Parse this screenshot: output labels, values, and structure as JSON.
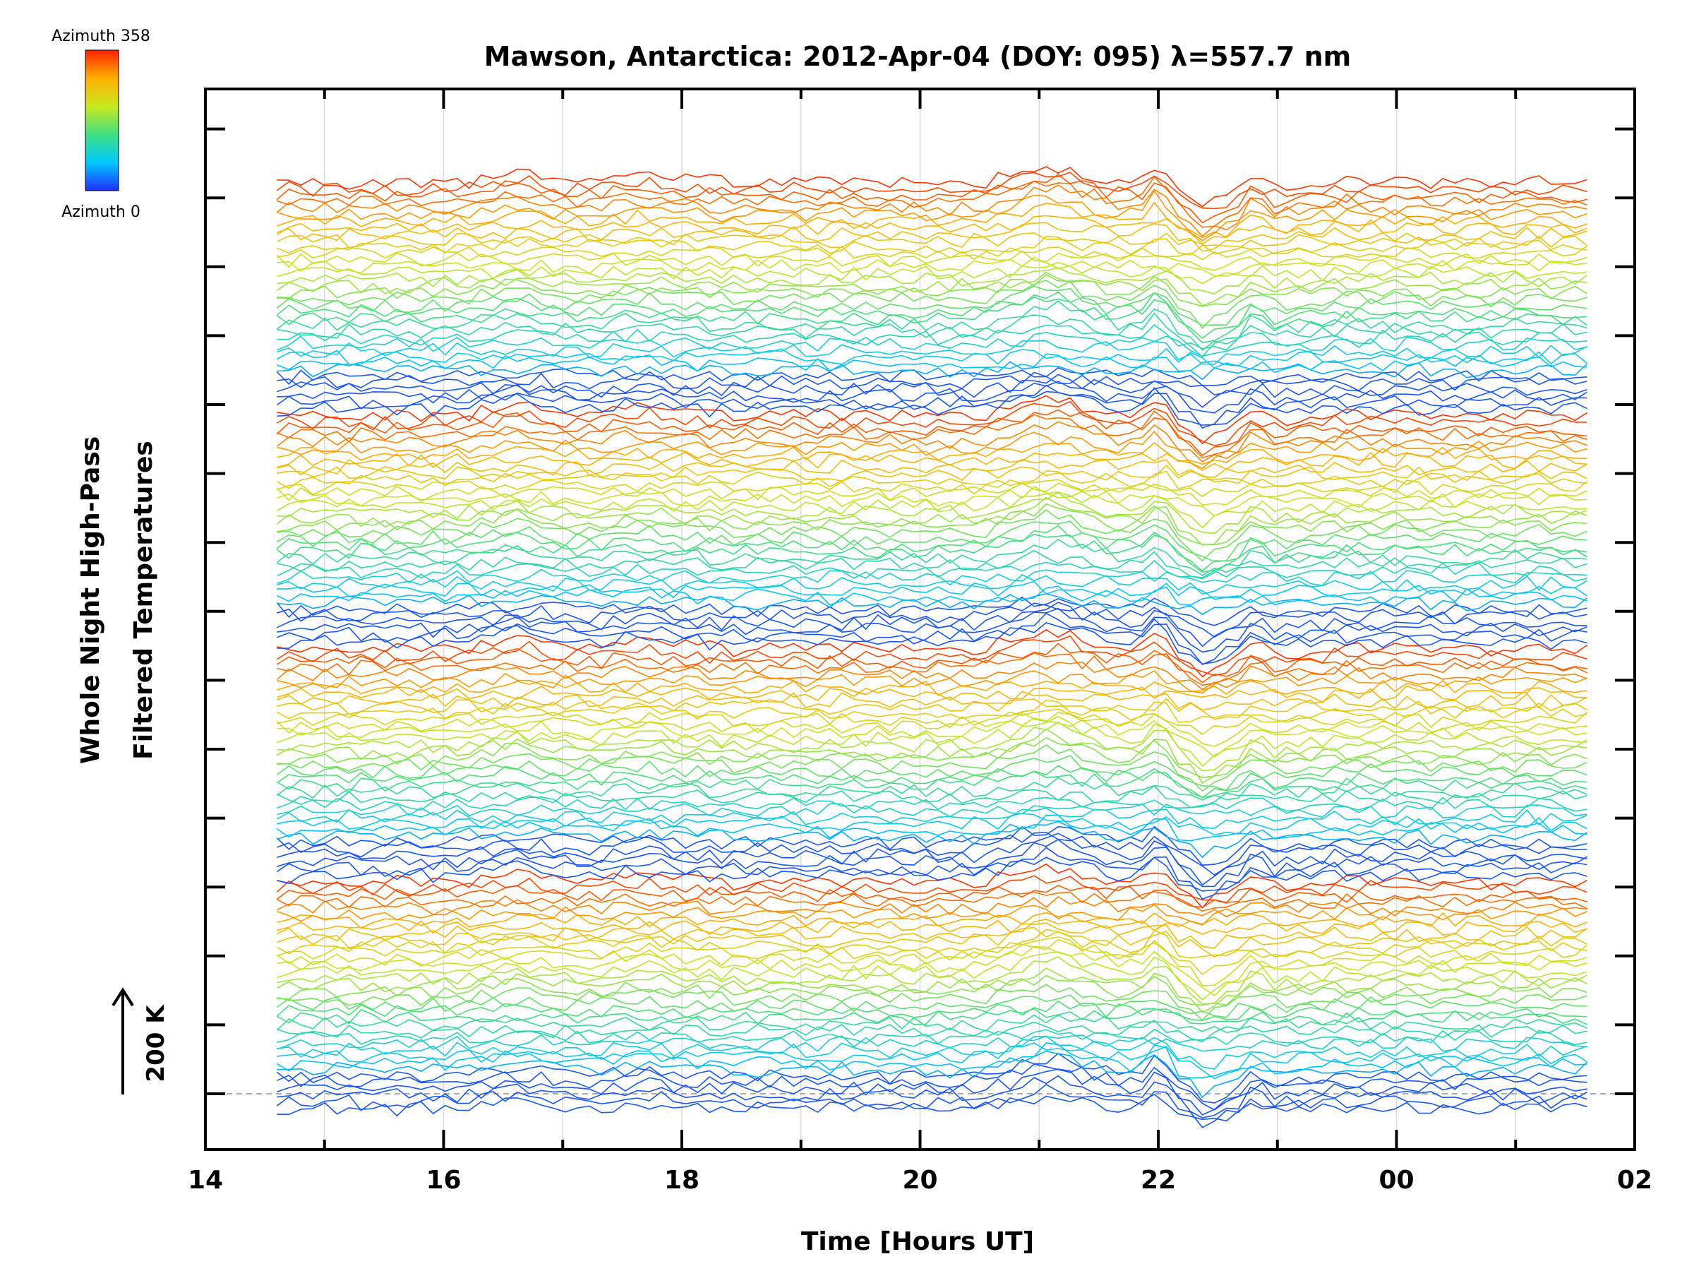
{
  "chart_data": {
    "type": "line",
    "title": "Mawson, Antarctica: 2012-Apr-04 (DOY: 095) λ=557.7 nm",
    "xlabel": "Time [Hours UT]",
    "ylabel_line1": "Whole Night High-Pass",
    "ylabel_line2": "Filtered Temperatures",
    "x_ticks": [
      "14",
      "16",
      "18",
      "20",
      "22",
      "00",
      "02"
    ],
    "x_range_hours_ut": [
      14,
      26
    ],
    "data_range_hours_ut": [
      14.6,
      25.6
    ],
    "scale_bar_label": "200 K",
    "legend": {
      "top_label": "Azimuth 358",
      "bottom_label": "Azimuth 0",
      "colormap": [
        "#2030ff",
        "#00c8ff",
        "#40e080",
        "#c8e820",
        "#ffb000",
        "#ff2000"
      ]
    },
    "grid": true,
    "series_count": 144,
    "series_note": "stacked high-pass filtered temperature traces per zenith-azimuth cell, colour = azimuth"
  }
}
